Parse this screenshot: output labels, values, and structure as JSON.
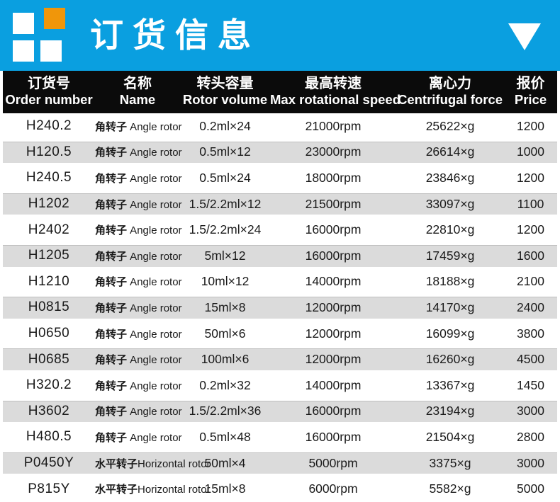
{
  "banner": {
    "title": "订货信息",
    "colors": {
      "background": "#0A9FE0",
      "logo_accent": "#F0960A",
      "logo_squares": "#FFFFFF"
    },
    "dropdown_icon": "triangle-down"
  },
  "table": {
    "colors": {
      "header_background": "#0B0B0B",
      "header_text": "#FFFFFF",
      "stripe": "#DBDBDB",
      "row_text": "#1A1A1A"
    },
    "columns": [
      {
        "cn": "订货号",
        "en": "Order number"
      },
      {
        "cn": "名称",
        "en": "Name"
      },
      {
        "cn": "转头容量",
        "en": "Rotor volume"
      },
      {
        "cn": "最高转速",
        "en": "Max rotational speed"
      },
      {
        "cn": "离心力",
        "en": "Centrifugal force"
      },
      {
        "cn": "报价",
        "en": "Price"
      }
    ],
    "rows": [
      {
        "order": "H240.2",
        "name_cn": "角转子",
        "name_en": " Angle rotor",
        "volume": "0.2ml×24",
        "speed": "21000rpm",
        "force": "25622×g",
        "price": "1200"
      },
      {
        "order": "H120.5",
        "name_cn": "角转子",
        "name_en": " Angle rotor",
        "volume": "0.5ml×12",
        "speed": "23000rpm",
        "force": "26614×g",
        "price": "1000"
      },
      {
        "order": "H240.5",
        "name_cn": "角转子",
        "name_en": " Angle rotor",
        "volume": "0.5ml×24",
        "speed": "18000rpm",
        "force": "23846×g",
        "price": "1200"
      },
      {
        "order": "H1202",
        "name_cn": "角转子",
        "name_en": " Angle rotor",
        "volume": "1.5/2.2ml×12",
        "speed": "21500rpm",
        "force": "33097×g",
        "price": "1100"
      },
      {
        "order": "H2402",
        "name_cn": "角转子",
        "name_en": " Angle rotor",
        "volume": "1.5/2.2ml×24",
        "speed": "16000rpm",
        "force": "22810×g",
        "price": "1200"
      },
      {
        "order": "H1205",
        "name_cn": "角转子",
        "name_en": " Angle rotor",
        "volume": "5ml×12",
        "speed": "16000rpm",
        "force": "17459×g",
        "price": "1600"
      },
      {
        "order": "H1210",
        "name_cn": "角转子",
        "name_en": " Angle rotor",
        "volume": "10ml×12",
        "speed": "14000rpm",
        "force": "18188×g",
        "price": "2100"
      },
      {
        "order": "H0815",
        "name_cn": "角转子",
        "name_en": " Angle rotor",
        "volume": "15ml×8",
        "speed": "12000rpm",
        "force": "14170×g",
        "price": "2400"
      },
      {
        "order": "H0650",
        "name_cn": "角转子",
        "name_en": " Angle rotor",
        "volume": "50ml×6",
        "speed": "12000rpm",
        "force": "16099×g",
        "price": "3800"
      },
      {
        "order": "H0685",
        "name_cn": "角转子",
        "name_en": " Angle rotor",
        "volume": "100ml×6",
        "speed": "12000rpm",
        "force": "16260×g",
        "price": "4500"
      },
      {
        "order": "H320.2",
        "name_cn": "角转子",
        "name_en": " Angle rotor",
        "volume": "0.2ml×32",
        "speed": "14000rpm",
        "force": "13367×g",
        "price": "1450"
      },
      {
        "order": "H3602",
        "name_cn": "角转子",
        "name_en": " Angle rotor",
        "volume": "1.5/2.2ml×36",
        "speed": "16000rpm",
        "force": "23194×g",
        "price": "3000"
      },
      {
        "order": "H480.5",
        "name_cn": "角转子",
        "name_en": " Angle rotor",
        "volume": "0.5ml×48",
        "speed": "16000rpm",
        "force": "21504×g",
        "price": "2800"
      },
      {
        "order": "P0450Y",
        "name_cn": "水平转子",
        "name_en": "Horizontal rotor",
        "volume": "50ml×4",
        "speed": "5000rpm",
        "force": "3375×g",
        "price": "3000"
      },
      {
        "order": "P815Y",
        "name_cn": "水平转子",
        "name_en": "Horizontal rotor",
        "volume": "15ml×8",
        "speed": "6000rpm",
        "force": "5582×g",
        "price": "5000"
      }
    ]
  }
}
